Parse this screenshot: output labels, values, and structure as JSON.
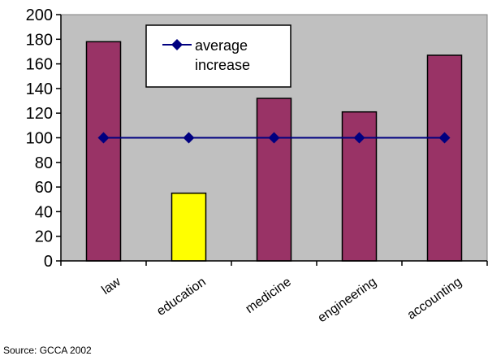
{
  "chart_data": {
    "type": "bar",
    "categories": [
      "law",
      "education",
      "medicine",
      "engineering",
      "accounting"
    ],
    "series": [
      {
        "type": "bar",
        "values": [
          178,
          55,
          132,
          121,
          167
        ],
        "colors": [
          "#993366",
          "#ffff00",
          "#993366",
          "#993366",
          "#993366"
        ]
      },
      {
        "name": "average increase",
        "type": "line",
        "values": [
          100,
          100,
          100,
          100,
          100
        ],
        "color": "#000080",
        "marker": "diamond"
      }
    ],
    "ylim": [
      0,
      200
    ],
    "yticks": [
      0,
      20,
      40,
      60,
      80,
      100,
      120,
      140,
      160,
      180,
      200
    ],
    "legend": {
      "placement": "top-center",
      "lines": [
        "average",
        "increase"
      ]
    },
    "plot_background": "#c0c0c0",
    "grid": false
  },
  "source_note": "Source: GCCA 2002"
}
